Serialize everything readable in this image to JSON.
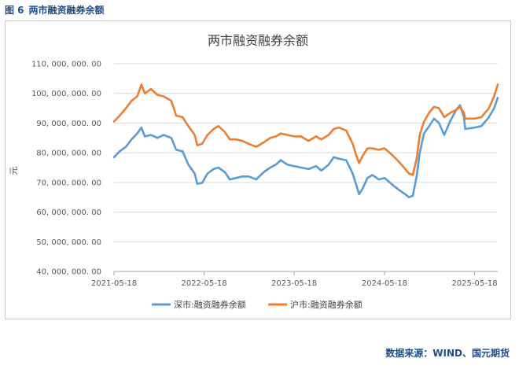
{
  "figure": {
    "number": "图 6",
    "caption": "两市融资融券余额"
  },
  "source_note": "数据来源：WIND、国元期货",
  "colors": {
    "sz": "#5B9BD5",
    "sh": "#ED7D31",
    "grid": "#d9d9d9",
    "heading": "#1f4e8c"
  },
  "chart_data": {
    "type": "line",
    "title": "两市融资融券余额",
    "xlabel": "",
    "ylabel": "元",
    "ylim": [
      40000000,
      110000000
    ],
    "yticks": [
      40000000,
      50000000,
      60000000,
      70000000,
      80000000,
      90000000,
      100000000,
      110000000
    ],
    "ytick_labels": [
      "40, 000, 000. 00",
      "50, 000, 000. 00",
      "60, 000, 000. 00",
      "70, 000, 000. 00",
      "80, 000, 000. 00",
      "90, 000, 000. 00",
      "100, 000, 000. 00",
      "110, 000, 000. 00"
    ],
    "xlim": [
      "2021-05-18",
      "2025-08-20"
    ],
    "xticks": [
      "2021-05-18",
      "2022-05-18",
      "2023-05-18",
      "2024-05-18",
      "2025-05-18"
    ],
    "grid": true,
    "legend_position": "bottom",
    "series": [
      {
        "name": "深市:融资融券余额",
        "color": "#5B9BD5",
        "points": [
          [
            "2021-05-18",
            78500000
          ],
          [
            "2021-06-10",
            80500000
          ],
          [
            "2021-07-05",
            82000000
          ],
          [
            "2021-07-28",
            84500000
          ],
          [
            "2021-08-20",
            86500000
          ],
          [
            "2021-09-06",
            88500000
          ],
          [
            "2021-09-20",
            85500000
          ],
          [
            "2021-10-15",
            86000000
          ],
          [
            "2021-11-10",
            85000000
          ],
          [
            "2021-12-05",
            86000000
          ],
          [
            "2022-01-05",
            85000000
          ],
          [
            "2022-01-25",
            81000000
          ],
          [
            "2022-02-20",
            80500000
          ],
          [
            "2022-03-15",
            76000000
          ],
          [
            "2022-04-10",
            73000000
          ],
          [
            "2022-04-20",
            69500000
          ],
          [
            "2022-05-10",
            69800000
          ],
          [
            "2022-06-01",
            73000000
          ],
          [
            "2022-06-25",
            74500000
          ],
          [
            "2022-07-15",
            75000000
          ],
          [
            "2022-08-10",
            73500000
          ],
          [
            "2022-08-30",
            71000000
          ],
          [
            "2022-09-25",
            71500000
          ],
          [
            "2022-10-20",
            72000000
          ],
          [
            "2022-11-15",
            72000000
          ],
          [
            "2022-12-15",
            71000000
          ],
          [
            "2023-01-15",
            73500000
          ],
          [
            "2023-02-10",
            75000000
          ],
          [
            "2023-03-05",
            76000000
          ],
          [
            "2023-03-25",
            77500000
          ],
          [
            "2023-04-20",
            76000000
          ],
          [
            "2023-05-18",
            75500000
          ],
          [
            "2023-06-15",
            75000000
          ],
          [
            "2023-07-15",
            74500000
          ],
          [
            "2023-08-15",
            75500000
          ],
          [
            "2023-09-05",
            74000000
          ],
          [
            "2023-10-05",
            76000000
          ],
          [
            "2023-10-25",
            78500000
          ],
          [
            "2023-11-15",
            78000000
          ],
          [
            "2023-12-15",
            77500000
          ],
          [
            "2024-01-10",
            73000000
          ],
          [
            "2024-01-25",
            69000000
          ],
          [
            "2024-02-05",
            66000000
          ],
          [
            "2024-02-20",
            68000000
          ],
          [
            "2024-03-10",
            71500000
          ],
          [
            "2024-03-30",
            72500000
          ],
          [
            "2024-04-25",
            71000000
          ],
          [
            "2024-05-18",
            71500000
          ],
          [
            "2024-06-15",
            69500000
          ],
          [
            "2024-07-15",
            67500000
          ],
          [
            "2024-08-10",
            66000000
          ],
          [
            "2024-08-25",
            65000000
          ],
          [
            "2024-09-10",
            65500000
          ],
          [
            "2024-09-25",
            72000000
          ],
          [
            "2024-10-08",
            80000000
          ],
          [
            "2024-10-25",
            86500000
          ],
          [
            "2024-11-15",
            89000000
          ],
          [
            "2024-12-05",
            91500000
          ],
          [
            "2024-12-25",
            90000000
          ],
          [
            "2025-01-15",
            86000000
          ],
          [
            "2025-02-10",
            91000000
          ],
          [
            "2025-03-05",
            94500000
          ],
          [
            "2025-03-20",
            96000000
          ],
          [
            "2025-04-05",
            92000000
          ],
          [
            "2025-04-10",
            88000000
          ],
          [
            "2025-05-18",
            88500000
          ],
          [
            "2025-06-15",
            89000000
          ],
          [
            "2025-07-15",
            92000000
          ],
          [
            "2025-08-05",
            95000000
          ],
          [
            "2025-08-20",
            98500000
          ]
        ]
      },
      {
        "name": "沪市:融资融券余额",
        "color": "#ED7D31",
        "points": [
          [
            "2021-05-18",
            90500000
          ],
          [
            "2021-06-10",
            92500000
          ],
          [
            "2021-07-05",
            95000000
          ],
          [
            "2021-07-28",
            97500000
          ],
          [
            "2021-08-20",
            99000000
          ],
          [
            "2021-09-06",
            103000000
          ],
          [
            "2021-09-20",
            100000000
          ],
          [
            "2021-10-15",
            101500000
          ],
          [
            "2021-11-10",
            99500000
          ],
          [
            "2021-12-05",
            99000000
          ],
          [
            "2022-01-05",
            97500000
          ],
          [
            "2022-01-25",
            92500000
          ],
          [
            "2022-02-20",
            92000000
          ],
          [
            "2022-03-15",
            89000000
          ],
          [
            "2022-04-10",
            86000000
          ],
          [
            "2022-04-20",
            82500000
          ],
          [
            "2022-05-10",
            83000000
          ],
          [
            "2022-06-01",
            86000000
          ],
          [
            "2022-06-25",
            88000000
          ],
          [
            "2022-07-15",
            89000000
          ],
          [
            "2022-08-10",
            87000000
          ],
          [
            "2022-08-30",
            84500000
          ],
          [
            "2022-09-25",
            84500000
          ],
          [
            "2022-10-20",
            84000000
          ],
          [
            "2022-11-15",
            83000000
          ],
          [
            "2022-12-15",
            82000000
          ],
          [
            "2023-01-15",
            83500000
          ],
          [
            "2023-02-10",
            85000000
          ],
          [
            "2023-03-05",
            85500000
          ],
          [
            "2023-03-25",
            86500000
          ],
          [
            "2023-04-20",
            86000000
          ],
          [
            "2023-05-18",
            85500000
          ],
          [
            "2023-06-15",
            85500000
          ],
          [
            "2023-07-15",
            84000000
          ],
          [
            "2023-08-15",
            85500000
          ],
          [
            "2023-09-05",
            84500000
          ],
          [
            "2023-10-05",
            86000000
          ],
          [
            "2023-10-25",
            88000000
          ],
          [
            "2023-11-15",
            88500000
          ],
          [
            "2023-12-15",
            87500000
          ],
          [
            "2024-01-10",
            83000000
          ],
          [
            "2024-01-25",
            79000000
          ],
          [
            "2024-02-05",
            76500000
          ],
          [
            "2024-02-20",
            79000000
          ],
          [
            "2024-03-10",
            81500000
          ],
          [
            "2024-03-30",
            81500000
          ],
          [
            "2024-04-25",
            81000000
          ],
          [
            "2024-05-18",
            81500000
          ],
          [
            "2024-06-15",
            79500000
          ],
          [
            "2024-07-15",
            77000000
          ],
          [
            "2024-08-10",
            74500000
          ],
          [
            "2024-08-25",
            73000000
          ],
          [
            "2024-09-10",
            72500000
          ],
          [
            "2024-09-25",
            78000000
          ],
          [
            "2024-10-08",
            86000000
          ],
          [
            "2024-10-25",
            90500000
          ],
          [
            "2024-11-15",
            93500000
          ],
          [
            "2024-12-05",
            95500000
          ],
          [
            "2024-12-25",
            95000000
          ],
          [
            "2025-01-15",
            92000000
          ],
          [
            "2025-02-10",
            93500000
          ],
          [
            "2025-03-05",
            94500000
          ],
          [
            "2025-03-20",
            95500000
          ],
          [
            "2025-04-05",
            93500000
          ],
          [
            "2025-04-10",
            91500000
          ],
          [
            "2025-05-18",
            91500000
          ],
          [
            "2025-06-15",
            92000000
          ],
          [
            "2025-07-15",
            95000000
          ],
          [
            "2025-08-05",
            99000000
          ],
          [
            "2025-08-20",
            103000000
          ]
        ]
      }
    ]
  }
}
